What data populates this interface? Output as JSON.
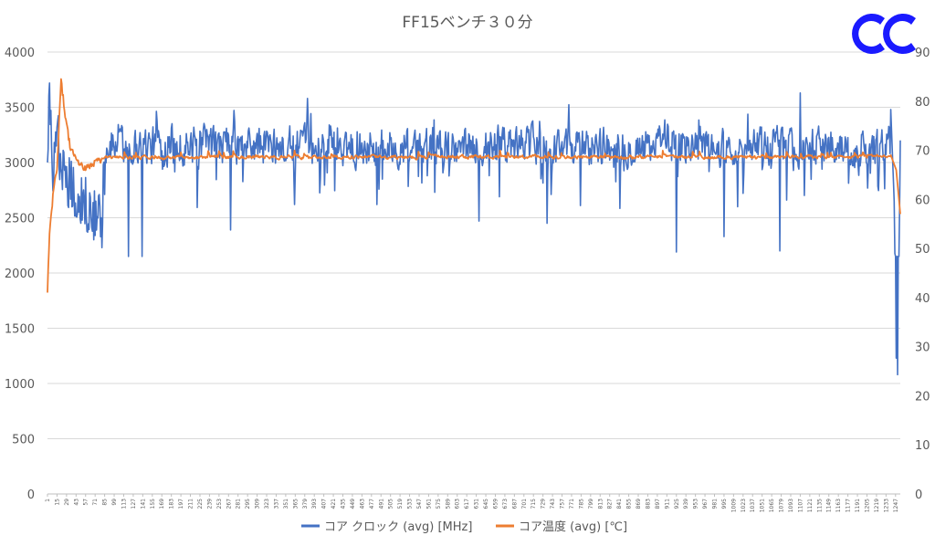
{
  "logo": {
    "icon": "double-c-logo",
    "color": "#1a1aff"
  },
  "chart_data": {
    "type": "line",
    "title": "FF15ベンチ３０分",
    "x": {
      "min": 1,
      "max": 1254,
      "tick_start": 1,
      "tick_step": 14
    },
    "y_left": {
      "min": 0,
      "max": 4000,
      "ticks": [
        0,
        500,
        1000,
        1500,
        2000,
        2500,
        3000,
        3500,
        4000
      ]
    },
    "y_right": {
      "min": 0,
      "max": 90,
      "ticks": [
        0,
        10,
        20,
        30,
        40,
        50,
        60,
        70,
        80,
        90
      ]
    },
    "grid": true,
    "legend_position": "bottom",
    "series": [
      {
        "name": "コア クロック (avg) [MHz]",
        "axis": "left",
        "color": "#4472c4",
        "base": 3150,
        "range": [
          2150,
          3730
        ],
        "noise": 170,
        "events": [
          {
            "x": 1,
            "y": 3000
          },
          {
            "x": 4,
            "y": 3720
          },
          {
            "x": 8,
            "y": 2930
          },
          {
            "x": 15,
            "y": 3320
          },
          {
            "x": 22,
            "y": 2900
          },
          {
            "x": 82,
            "y": 2450
          },
          {
            "x": 120,
            "y": 2150
          },
          {
            "x": 140,
            "y": 2150
          },
          {
            "x": 270,
            "y": 2390
          },
          {
            "x": 635,
            "y": 2470
          },
          {
            "x": 735,
            "y": 2450
          },
          {
            "x": 925,
            "y": 2190
          },
          {
            "x": 995,
            "y": 2330
          },
          {
            "x": 1077,
            "y": 2200
          },
          {
            "x": 1107,
            "y": 3630
          },
          {
            "x": 1240,
            "y": 3480
          },
          {
            "x": 1245,
            "y": 2650
          },
          {
            "x": 1248,
            "y": 1230
          },
          {
            "x": 1250,
            "y": 1080
          },
          {
            "x": 1253,
            "y": 2600
          }
        ]
      },
      {
        "name": "コア温度 (avg) [℃]",
        "axis": "right",
        "color": "#ed7d31",
        "base": 68.6,
        "range": [
          41,
          84.5
        ],
        "noise": 0.7,
        "events": [
          {
            "x": 1,
            "y": 41
          },
          {
            "x": 4,
            "y": 53
          },
          {
            "x": 10,
            "y": 62
          },
          {
            "x": 15,
            "y": 66
          },
          {
            "x": 21,
            "y": 84.5
          },
          {
            "x": 26,
            "y": 78
          },
          {
            "x": 35,
            "y": 70
          },
          {
            "x": 55,
            "y": 66
          },
          {
            "x": 80,
            "y": 68
          },
          {
            "x": 1240,
            "y": 69
          },
          {
            "x": 1248,
            "y": 66
          },
          {
            "x": 1254,
            "y": 57
          }
        ]
      }
    ]
  }
}
